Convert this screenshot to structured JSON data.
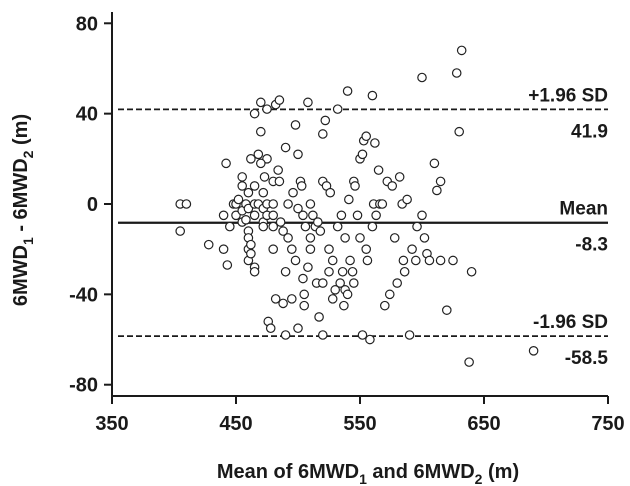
{
  "chart_data": {
    "type": "scatter",
    "title": "",
    "xlabel": {
      "prefix": "Mean of 6MWD",
      "sub1": "1",
      "mid": " and 6MWD",
      "sub2": "2",
      "suffix": " (m)"
    },
    "ylabel": {
      "prefix": "6MWD",
      "sub1": "1",
      "mid": " - 6MWD",
      "sub2": "2",
      "suffix": " (m)"
    },
    "xlim": [
      350,
      750
    ],
    "ylim": [
      -85,
      85
    ],
    "x_ticks": [
      350,
      450,
      550,
      650,
      750
    ],
    "y_ticks": [
      -80,
      -40,
      0,
      40,
      80
    ],
    "grid": false,
    "reference_lines": [
      {
        "name": "upper",
        "y": 41.9,
        "style": "dashed",
        "label": "+1.96 SD",
        "value_label": "41.9"
      },
      {
        "name": "mean",
        "y": -8.3,
        "style": "solid",
        "label": "Mean",
        "value_label": "-8.3"
      },
      {
        "name": "lower",
        "y": -58.5,
        "style": "dashed",
        "label": "-1.96 SD",
        "value_label": "-58.5"
      }
    ],
    "marker": {
      "shape": "open-circle",
      "color": "#222222"
    },
    "points": [
      [
        405,
        0
      ],
      [
        410,
        0
      ],
      [
        405,
        -12
      ],
      [
        428,
        -18
      ],
      [
        440,
        -20
      ],
      [
        442,
        18
      ],
      [
        440,
        -5
      ],
      [
        445,
        -10
      ],
      [
        443,
        -27
      ],
      [
        448,
        0
      ],
      [
        450,
        0
      ],
      [
        452,
        2
      ],
      [
        450,
        -5
      ],
      [
        455,
        8
      ],
      [
        455,
        -8
      ],
      [
        455,
        -3
      ],
      [
        455,
        12
      ],
      [
        458,
        0
      ],
      [
        460,
        5
      ],
      [
        460,
        -2
      ],
      [
        460,
        -12
      ],
      [
        460,
        -15
      ],
      [
        460,
        -20
      ],
      [
        460,
        -25
      ],
      [
        462,
        20
      ],
      [
        462,
        -18
      ],
      [
        462,
        -22
      ],
      [
        465,
        0
      ],
      [
        465,
        -5
      ],
      [
        465,
        -28
      ],
      [
        465,
        8
      ],
      [
        465,
        -30
      ],
      [
        465,
        40
      ],
      [
        468,
        22
      ],
      [
        468,
        0
      ],
      [
        470,
        45
      ],
      [
        470,
        32
      ],
      [
        472,
        5
      ],
      [
        472,
        -2
      ],
      [
        472,
        -8
      ],
      [
        472,
        -10
      ],
      [
        473,
        12
      ],
      [
        475,
        42
      ],
      [
        475,
        20
      ],
      [
        475,
        0
      ],
      [
        475,
        -5
      ],
      [
        476,
        -52
      ],
      [
        478,
        -55
      ],
      [
        480,
        0
      ],
      [
        480,
        10
      ],
      [
        480,
        -5
      ],
      [
        480,
        -10
      ],
      [
        480,
        -20
      ],
      [
        482,
        44
      ],
      [
        482,
        -42
      ],
      [
        484,
        15
      ],
      [
        485,
        10
      ],
      [
        485,
        46
      ],
      [
        486,
        -8
      ],
      [
        488,
        -12
      ],
      [
        488,
        -44
      ],
      [
        490,
        -58
      ],
      [
        490,
        -30
      ],
      [
        490,
        25
      ],
      [
        492,
        0
      ],
      [
        492,
        -15
      ],
      [
        495,
        -20
      ],
      [
        495,
        -42
      ],
      [
        496,
        5
      ],
      [
        498,
        35
      ],
      [
        498,
        -25
      ],
      [
        500,
        22
      ],
      [
        500,
        -55
      ],
      [
        502,
        10
      ],
      [
        503,
        8
      ],
      [
        504,
        -33
      ],
      [
        504,
        -5
      ],
      [
        505,
        -45
      ],
      [
        505,
        -40
      ],
      [
        506,
        -10
      ],
      [
        508,
        45
      ],
      [
        508,
        -28
      ],
      [
        510,
        -15
      ],
      [
        510,
        0
      ],
      [
        510,
        -20
      ],
      [
        512,
        -5
      ],
      [
        514,
        -10
      ],
      [
        515,
        -35
      ],
      [
        516,
        -8
      ],
      [
        517,
        -50
      ],
      [
        518,
        -12
      ],
      [
        520,
        31
      ],
      [
        520,
        10
      ],
      [
        520,
        -35
      ],
      [
        522,
        37
      ],
      [
        523,
        8
      ],
      [
        525,
        -20
      ],
      [
        525,
        -30
      ],
      [
        526,
        5
      ],
      [
        528,
        -25
      ],
      [
        528,
        -42
      ],
      [
        530,
        -38
      ],
      [
        532,
        42
      ],
      [
        532,
        -10
      ],
      [
        534,
        -35
      ],
      [
        535,
        -5
      ],
      [
        536,
        -30
      ],
      [
        538,
        -15
      ],
      [
        538,
        -38
      ],
      [
        540,
        50
      ],
      [
        540,
        -40
      ],
      [
        541,
        2
      ],
      [
        542,
        -25
      ],
      [
        544,
        -30
      ],
      [
        545,
        10
      ],
      [
        545,
        -35
      ],
      [
        546,
        8
      ],
      [
        548,
        -5
      ],
      [
        550,
        20
      ],
      [
        550,
        -15
      ],
      [
        552,
        -58
      ],
      [
        552,
        22
      ],
      [
        553,
        28
      ],
      [
        555,
        30
      ],
      [
        555,
        -20
      ],
      [
        556,
        -25
      ],
      [
        558,
        -60
      ],
      [
        560,
        48
      ],
      [
        560,
        -10
      ],
      [
        561,
        0
      ],
      [
        562,
        27
      ],
      [
        563,
        -5
      ],
      [
        565,
        15
      ],
      [
        566,
        0
      ],
      [
        568,
        0
      ],
      [
        570,
        -45
      ],
      [
        572,
        10
      ],
      [
        574,
        -40
      ],
      [
        576,
        8
      ],
      [
        578,
        -15
      ],
      [
        580,
        -35
      ],
      [
        582,
        12
      ],
      [
        584,
        0
      ],
      [
        585,
        -25
      ],
      [
        586,
        -30
      ],
      [
        588,
        2
      ],
      [
        590,
        -58
      ],
      [
        592,
        -20
      ],
      [
        595,
        -25
      ],
      [
        596,
        -10
      ],
      [
        600,
        56
      ],
      [
        600,
        -5
      ],
      [
        602,
        -15
      ],
      [
        604,
        -22
      ],
      [
        606,
        -25
      ],
      [
        610,
        18
      ],
      [
        612,
        6
      ],
      [
        615,
        10
      ],
      [
        615,
        -25
      ],
      [
        620,
        -47
      ],
      [
        625,
        -25
      ],
      [
        628,
        58
      ],
      [
        630,
        32
      ],
      [
        632,
        68
      ],
      [
        638,
        -70
      ],
      [
        640,
        -30
      ],
      [
        690,
        -65
      ],
      [
        520,
        -58
      ],
      [
        470,
        18
      ],
      [
        458,
        -7
      ],
      [
        500,
        -2
      ],
      [
        537,
        -45
      ]
    ]
  }
}
